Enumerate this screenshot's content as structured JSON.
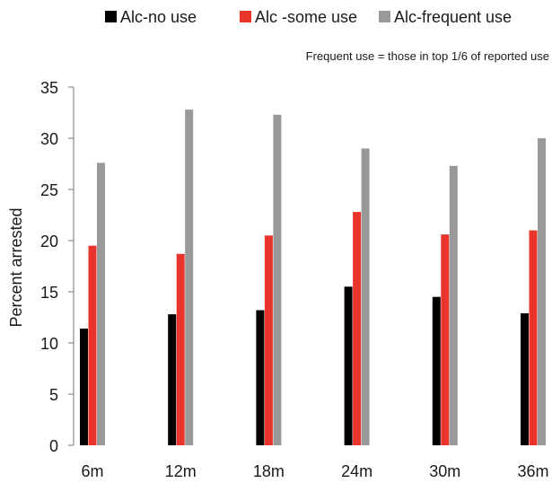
{
  "chart_data": {
    "type": "bar",
    "title": "",
    "xlabel": "",
    "ylabel": "Percent arrested",
    "note": "Frequent use = those in top 1/6 of reported use",
    "categories": [
      "6m",
      "12m",
      "18m",
      "24m",
      "30m",
      "36m"
    ],
    "series": [
      {
        "name": "Alc-no use",
        "color": "#000000",
        "values": [
          11.4,
          12.8,
          13.2,
          15.5,
          14.5,
          12.9
        ]
      },
      {
        "name": "Alc -some use",
        "color": "#e8342a",
        "values": [
          19.5,
          18.7,
          20.5,
          22.8,
          20.6,
          21.0
        ]
      },
      {
        "name": "Alc-frequent use",
        "color": "#999999",
        "values": [
          27.6,
          32.8,
          32.3,
          29.0,
          27.3,
          30.0
        ]
      }
    ],
    "ylim": [
      0,
      35
    ],
    "yticks": [
      0,
      5,
      10,
      15,
      20,
      25,
      30,
      35
    ],
    "grid": false,
    "legend": "top"
  }
}
